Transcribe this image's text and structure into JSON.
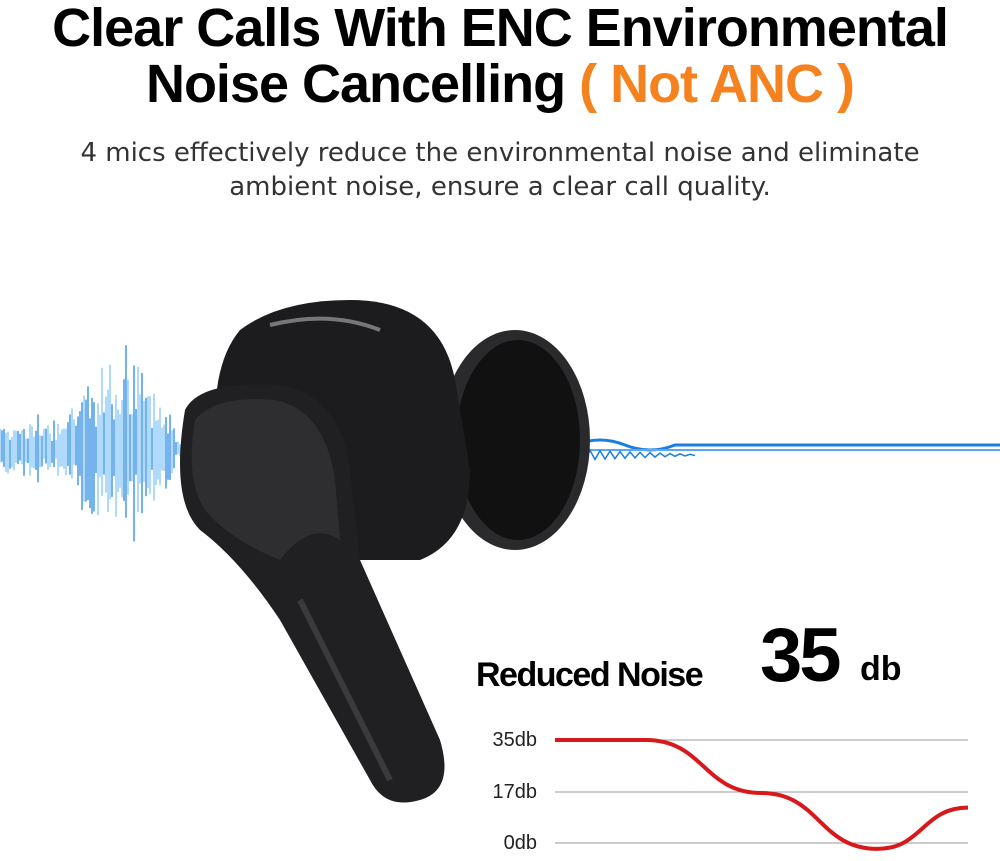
{
  "headline": {
    "line1": "Clear Calls With ENC Environmental",
    "line2": "Noise Cancelling",
    "highlight": "( Not ANC )",
    "highlight_color": "#f5821f"
  },
  "subtitle": {
    "line1": "4 mics effectively reduce the environmental noise and eliminate",
    "line2": "ambient noise, ensure a clear call quality."
  },
  "badge": {
    "label": "Reduced Noise",
    "value": "35",
    "unit": "db"
  },
  "chart_data": {
    "type": "line",
    "yticks": [
      "35db",
      "17db",
      "0db"
    ],
    "ylim": [
      0,
      35
    ],
    "grid": true,
    "line_color": "#d7191c",
    "points": [
      [
        0,
        35
      ],
      [
        0.22,
        35
      ],
      [
        0.5,
        17
      ],
      [
        0.78,
        -2
      ],
      [
        1,
        12
      ]
    ]
  },
  "colors": {
    "wave": "#1a7fe0",
    "earbud": "#1c1c1e"
  }
}
